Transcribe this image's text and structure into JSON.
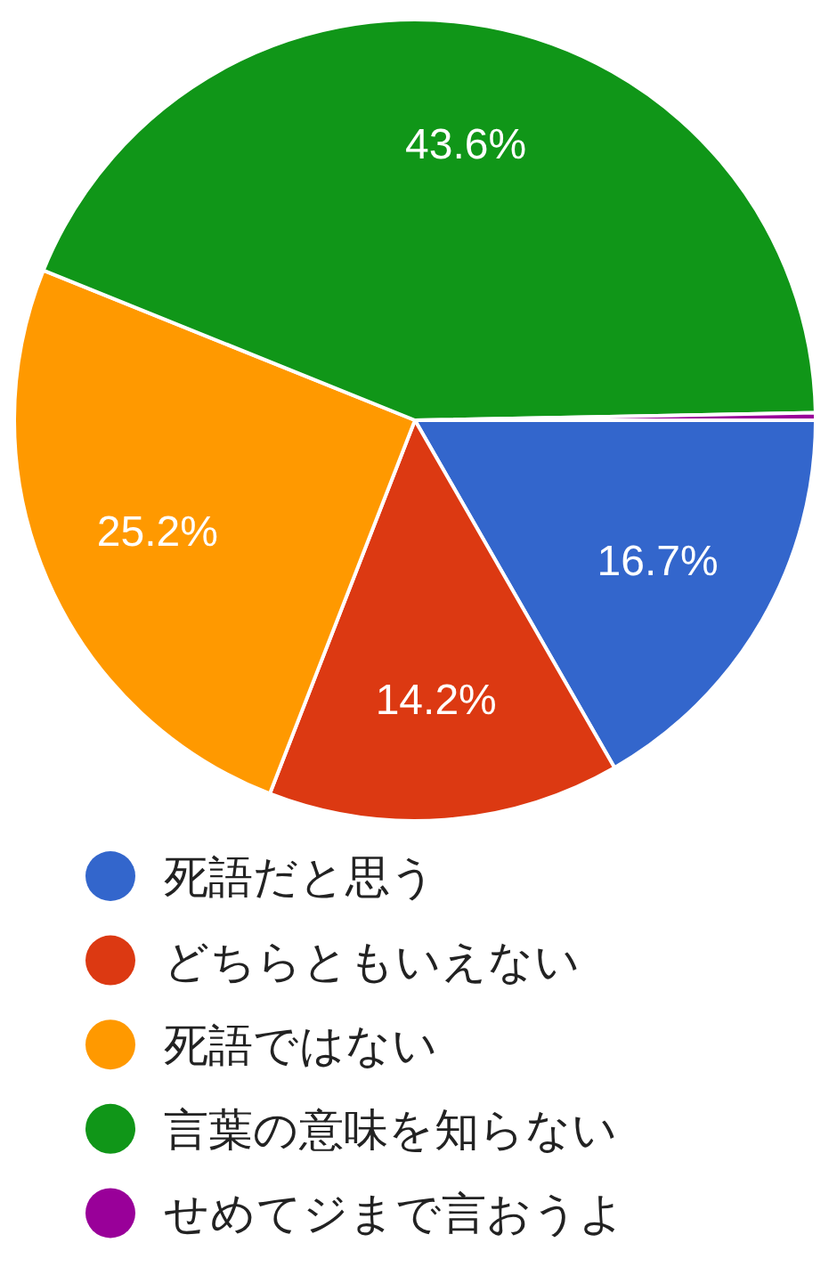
{
  "chart_data": {
    "type": "pie",
    "categories": [
      "死語だと思う",
      "どちらともいえない",
      "死語ではない",
      "言葉の意味を知らない",
      "せめてジまで言おうよ"
    ],
    "values": [
      16.7,
      14.2,
      25.2,
      43.6,
      0.3
    ],
    "colors": [
      "#3366cc",
      "#dc3912",
      "#ff9900",
      "#109618",
      "#990099"
    ],
    "value_labels": [
      "16.7%",
      "14.2%",
      "25.2%",
      "43.6%",
      null
    ],
    "legend": "bottom"
  }
}
